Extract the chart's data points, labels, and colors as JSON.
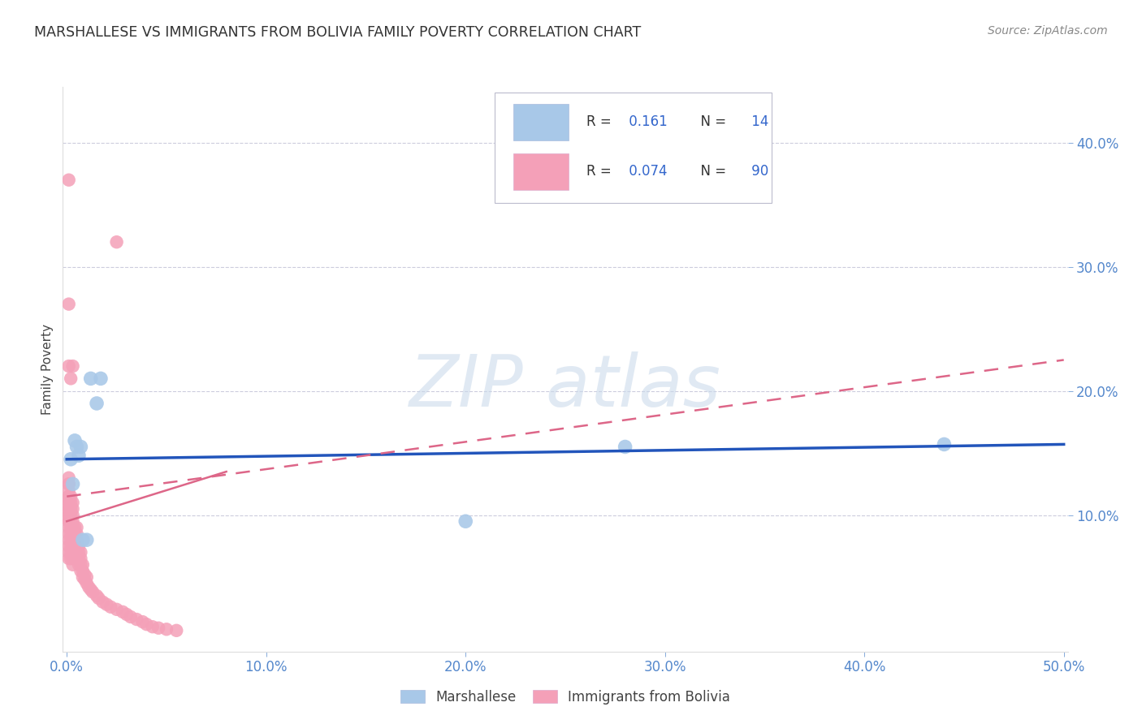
{
  "title": "MARSHALLESE VS IMMIGRANTS FROM BOLIVIA FAMILY POVERTY CORRELATION CHART",
  "source": "Source: ZipAtlas.com",
  "ylabel": "Family Poverty",
  "xlim": [
    -0.002,
    0.502
  ],
  "ylim": [
    -0.01,
    0.445
  ],
  "ytick_vals": [
    0.1,
    0.2,
    0.3,
    0.4
  ],
  "ytick_labels": [
    "10.0%",
    "20.0%",
    "30.0%",
    "40.0%"
  ],
  "xtick_vals": [
    0.0,
    0.1,
    0.2,
    0.3,
    0.4,
    0.5
  ],
  "xtick_labels": [
    "0.0%",
    "10.0%",
    "20.0%",
    "30.0%",
    "40.0%",
    "50.0%"
  ],
  "marshallese_R": "0.161",
  "marshallese_N": "14",
  "bolivia_R": "0.074",
  "bolivia_N": "90",
  "marshallese_color": "#a8c8e8",
  "bolivia_color": "#f4a0b8",
  "trendline_marsh_color": "#2255bb",
  "trendline_boliv_color": "#dd6688",
  "axis_tick_color": "#5588cc",
  "title_color": "#333333",
  "source_color": "#888888",
  "grid_color": "#ccccdd",
  "watermark_color": "#c8d8ea",
  "legend_text_color": "#333333",
  "legend_num_color": "#3366cc",
  "marshallese_x": [
    0.002,
    0.003,
    0.004,
    0.005,
    0.006,
    0.007,
    0.008,
    0.01,
    0.012,
    0.015,
    0.017,
    0.2,
    0.28,
    0.44
  ],
  "marshallese_y": [
    0.145,
    0.125,
    0.16,
    0.155,
    0.148,
    0.155,
    0.08,
    0.08,
    0.21,
    0.19,
    0.21,
    0.095,
    0.155,
    0.157
  ],
  "bolivia_x": [
    0.001,
    0.001,
    0.001,
    0.001,
    0.001,
    0.001,
    0.001,
    0.001,
    0.001,
    0.001,
    0.001,
    0.001,
    0.001,
    0.001,
    0.001,
    0.001,
    0.001,
    0.001,
    0.001,
    0.001,
    0.002,
    0.002,
    0.002,
    0.002,
    0.002,
    0.002,
    0.002,
    0.002,
    0.002,
    0.002,
    0.002,
    0.002,
    0.002,
    0.002,
    0.003,
    0.003,
    0.003,
    0.003,
    0.003,
    0.003,
    0.003,
    0.003,
    0.003,
    0.003,
    0.003,
    0.004,
    0.004,
    0.004,
    0.004,
    0.004,
    0.005,
    0.005,
    0.005,
    0.005,
    0.005,
    0.005,
    0.006,
    0.006,
    0.006,
    0.006,
    0.007,
    0.007,
    0.007,
    0.007,
    0.008,
    0.008,
    0.008,
    0.009,
    0.009,
    0.01,
    0.01,
    0.011,
    0.012,
    0.013,
    0.015,
    0.016,
    0.018,
    0.02,
    0.022,
    0.025,
    0.028,
    0.03,
    0.032,
    0.035,
    0.038,
    0.04,
    0.043,
    0.046,
    0.05,
    0.055
  ],
  "bolivia_y": [
    0.09,
    0.095,
    0.095,
    0.1,
    0.1,
    0.105,
    0.105,
    0.11,
    0.11,
    0.115,
    0.115,
    0.12,
    0.125,
    0.125,
    0.13,
    0.075,
    0.08,
    0.085,
    0.07,
    0.065,
    0.09,
    0.095,
    0.1,
    0.105,
    0.105,
    0.11,
    0.115,
    0.095,
    0.09,
    0.085,
    0.08,
    0.075,
    0.07,
    0.065,
    0.085,
    0.09,
    0.095,
    0.1,
    0.105,
    0.11,
    0.08,
    0.075,
    0.07,
    0.065,
    0.06,
    0.075,
    0.08,
    0.085,
    0.09,
    0.07,
    0.065,
    0.07,
    0.075,
    0.08,
    0.085,
    0.09,
    0.06,
    0.065,
    0.07,
    0.075,
    0.055,
    0.06,
    0.065,
    0.07,
    0.05,
    0.055,
    0.06,
    0.048,
    0.052,
    0.045,
    0.05,
    0.042,
    0.04,
    0.038,
    0.035,
    0.033,
    0.03,
    0.028,
    0.026,
    0.024,
    0.022,
    0.02,
    0.018,
    0.016,
    0.014,
    0.012,
    0.01,
    0.009,
    0.008,
    0.007
  ],
  "bolivia_outlier_x": [
    0.001,
    0.001,
    0.001,
    0.002,
    0.003,
    0.025
  ],
  "bolivia_outlier_y": [
    0.37,
    0.27,
    0.22,
    0.21,
    0.22,
    0.32
  ]
}
